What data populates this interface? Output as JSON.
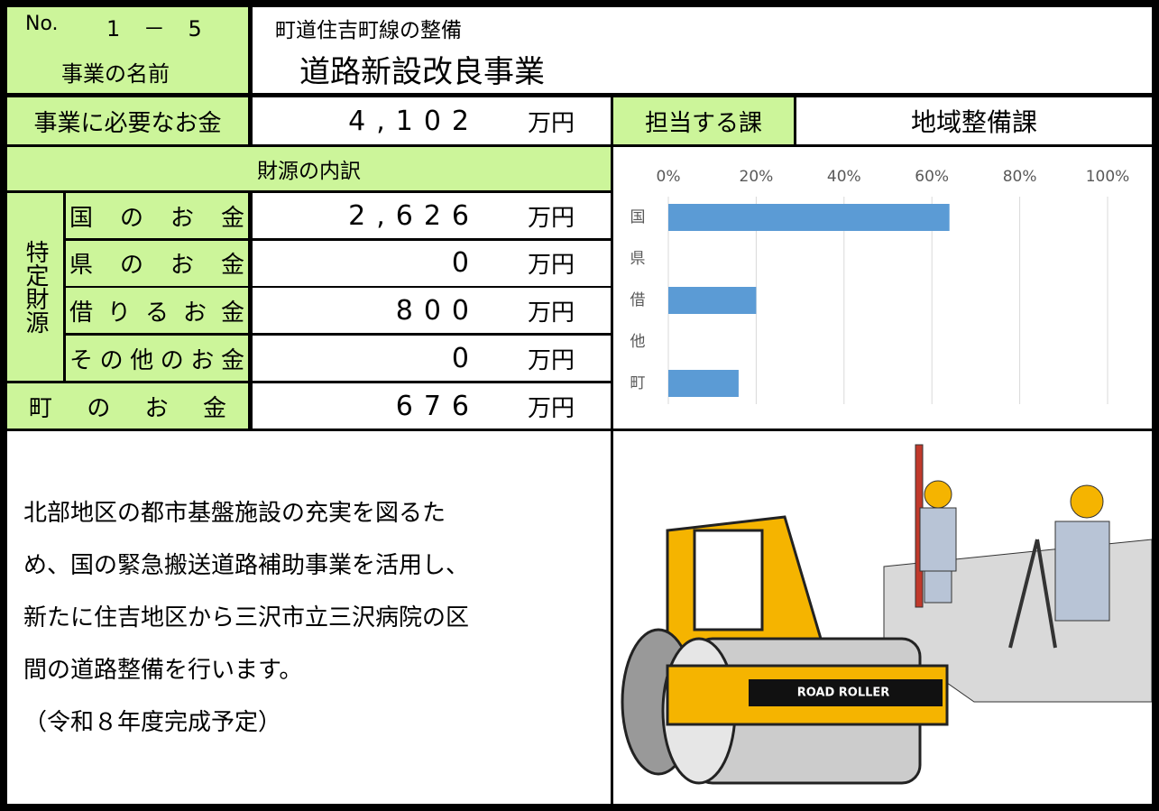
{
  "header": {
    "number_label": "No.",
    "number": "1 － 5",
    "project_subtitle": "町道住吉町線の整備",
    "name_label": "事業の名前",
    "name": "道路新設改良事業"
  },
  "cost": {
    "label": "事業に必要なお金",
    "amount": "4,102",
    "unit": "万円",
    "dept_label": "担当する課",
    "dept": "地域整備課"
  },
  "funding": {
    "title": "財源の内訳",
    "special_label": "特定財源",
    "rows": [
      {
        "label": "国のお金",
        "amount": "2,626",
        "unit": "万円"
      },
      {
        "label": "県のお金",
        "amount": "0",
        "unit": "万円"
      },
      {
        "label": "借りるお金",
        "amount": "800",
        "unit": "万円"
      },
      {
        "label": "その他のお金",
        "amount": "0",
        "unit": "万円"
      }
    ],
    "town": {
      "label": "町のお金",
      "amount": "676",
      "unit": "万円"
    }
  },
  "description": {
    "lines": [
      "北部地区の都市基盤施設の充実を図るた",
      "め、国の緊急搬送道路補助事業を活用し、",
      "新たに住吉地区から三沢市立三沢病院の区",
      "間の道路整備を行います。"
    ],
    "note": "（令和８年度完成予定）"
  },
  "image": {
    "label": "ROAD ROLLER"
  },
  "chart_data": {
    "type": "bar",
    "orientation": "horizontal",
    "categories": [
      "国",
      "県",
      "借",
      "他",
      "町"
    ],
    "values": [
      64,
      0,
      20,
      0,
      16
    ],
    "color": "#5b9bd5",
    "xlim": [
      0,
      100
    ],
    "xticks": [
      {
        "value": 0,
        "label": "0%"
      },
      {
        "value": 20,
        "label": "20%"
      },
      {
        "value": 40,
        "label": "40%"
      },
      {
        "value": 60,
        "label": "60%"
      },
      {
        "value": 80,
        "label": "80%"
      },
      {
        "value": 100,
        "label": "100%"
      }
    ],
    "grid": true
  }
}
